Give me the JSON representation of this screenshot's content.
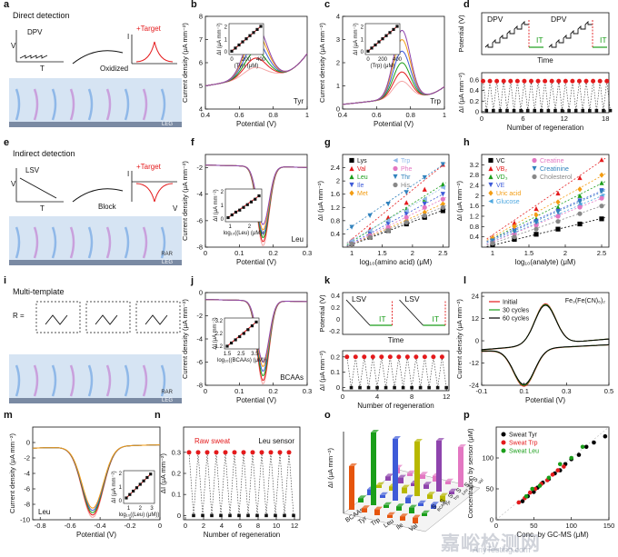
{
  "watermark": {
    "main": "嘉峪检测网",
    "url": "AnyTesting.com"
  },
  "schematics": {
    "a": {
      "title": "Direct detection",
      "method": "DPV",
      "target": "+Target",
      "step": "Oxidized",
      "axis_y": "V",
      "axis_x": "T",
      "axis_i": "I",
      "electrode": "LEG"
    },
    "e": {
      "title": "Indirect detection",
      "method": "LSV",
      "target": "+Target",
      "step": "Block",
      "axis_y": "V",
      "axis_x": "T",
      "axis_i": "I",
      "axis_v": "V",
      "electrode": "LEG",
      "layer": "RAR"
    },
    "i": {
      "title": "Multi-template",
      "r_label": "R =",
      "electrode": "LEG",
      "layer": "RAR"
    }
  },
  "chart_data": [
    {
      "panel": "b",
      "type": "line",
      "xlabel": "Potential (V)",
      "ylabel": "Current density (μA mm⁻²)",
      "xlim": [
        0.4,
        1.0
      ],
      "ylim": [
        4,
        8
      ],
      "xticks": [
        0.4,
        0.6,
        0.8,
        1.0
      ],
      "yticks": [
        4,
        5,
        6,
        7,
        8
      ],
      "annotation": "Tyr",
      "peak_x": 0.7,
      "series_peaks": [
        5.8,
        6.2,
        6.5,
        6.9,
        7.3,
        7.6
      ]
    },
    {
      "panel": "b-inset",
      "type": "scatter",
      "xlabel": "(Tyr) (μM)",
      "ylabel": "ΔI (μA mm⁻²)",
      "xticks": [
        0,
        200,
        400
      ],
      "yticks": [
        0,
        1,
        2
      ],
      "x": [
        0,
        50,
        100,
        150,
        200,
        250,
        300,
        350,
        400
      ],
      "y": [
        0.05,
        0.3,
        0.55,
        0.8,
        1.05,
        1.3,
        1.55,
        1.8,
        2.05
      ]
    },
    {
      "panel": "c",
      "type": "line",
      "xlabel": "Potential (V)",
      "ylabel": "Current density (μA mm⁻²)",
      "xlim": [
        0.4,
        1.0
      ],
      "ylim": [
        0,
        4
      ],
      "xticks": [
        0.4,
        0.6,
        0.8,
        1.0
      ],
      "yticks": [
        0,
        1,
        2,
        3,
        4
      ],
      "annotation": "Trp",
      "peak_x": 0.75,
      "series_peaks": [
        1.2,
        1.6,
        2.0,
        2.5,
        3.0,
        3.4
      ]
    },
    {
      "panel": "c-inset",
      "type": "scatter",
      "xlabel": "(Trp) (μM)",
      "ylabel": "ΔI (μA mm⁻²)",
      "xticks": [
        0,
        200,
        400
      ],
      "yticks": [
        0,
        1,
        2
      ],
      "x": [
        0,
        50,
        100,
        150,
        200,
        250,
        300,
        350,
        400
      ],
      "y": [
        0.05,
        0.3,
        0.55,
        0.8,
        1.05,
        1.3,
        1.55,
        1.8,
        2.05
      ]
    },
    {
      "panel": "d",
      "type": "line",
      "title_labels": [
        "DPV",
        "IT",
        "DPV",
        "IT"
      ],
      "xlabel": "Time",
      "ylabel": "Potential (V)"
    },
    {
      "panel": "d-2",
      "type": "scatter",
      "xlabel": "Number of regeneration",
      "ylabel": "ΔI (μA mm⁻²)",
      "xticks": [
        0,
        6,
        12,
        18
      ],
      "xlim": [
        0,
        18.5
      ],
      "ylim": [
        -0.02,
        0.74
      ],
      "yticks": [
        0,
        0.2,
        0.4,
        0.6
      ],
      "high": 0.58,
      "low": 0.02,
      "cycles": 19
    },
    {
      "panel": "f",
      "type": "line",
      "xlabel": "Potential (V)",
      "ylabel": "Current density (μA mm⁻²)",
      "xlim": [
        0,
        0.3
      ],
      "ylim": [
        -8,
        -1
      ],
      "xticks": [
        0,
        0.1,
        0.2,
        0.3
      ],
      "yticks": [
        -8,
        -6,
        -4,
        -2
      ],
      "annotation": "Leu",
      "peak_x": 0.17,
      "series_peaks": [
        -7.9,
        -7.6,
        -7.3,
        -7.0,
        -6.7,
        -6.3
      ]
    },
    {
      "panel": "f-inset",
      "type": "scatter",
      "xlabel": "log₁₀((Leu) (μM))",
      "ylabel": "ΔI (μA mm⁻²)",
      "xticks": [
        1,
        2
      ],
      "yticks": [
        0,
        1,
        2
      ],
      "x": [
        0.9,
        1.1,
        1.3,
        1.5,
        1.7,
        1.9,
        2.1,
        2.3,
        2.5
      ],
      "y": [
        0.1,
        0.3,
        0.5,
        0.65,
        0.85,
        1.05,
        1.25,
        1.45,
        1.7
      ]
    },
    {
      "panel": "g",
      "type": "scatter",
      "xlabel": "log₁₀(amino acid) (μM)",
      "ylabel": "ΔI (μA mm⁻²)",
      "xlim": [
        0.85,
        2.6
      ],
      "ylim": [
        0,
        2.8
      ],
      "xticks": [
        1.0,
        1.5,
        2.0,
        2.5
      ],
      "yticks": [
        0.4,
        0.8,
        1.2,
        1.6,
        2.0,
        2.4
      ],
      "x": [
        1.0,
        1.3,
        1.6,
        1.9,
        2.2,
        2.5
      ],
      "series": [
        {
          "name": "Lys",
          "color": "#000000",
          "marker": "square",
          "values": [
            0.1,
            0.3,
            0.5,
            0.7,
            0.9,
            1.1
          ]
        },
        {
          "name": "Val",
          "color": "#e41a1c",
          "marker": "triangle",
          "values": [
            0.2,
            0.55,
            0.9,
            1.35,
            1.75,
            2.5
          ]
        },
        {
          "name": "Leu",
          "color": "#1a9e1a",
          "marker": "triangle",
          "values": [
            0.15,
            0.45,
            0.8,
            1.15,
            1.45,
            1.9
          ]
        },
        {
          "name": "Ile",
          "color": "#3e5bd8",
          "marker": "triangle-down",
          "values": [
            0.12,
            0.4,
            0.7,
            1.0,
            1.3,
            1.6
          ]
        },
        {
          "name": "Met",
          "color": "#f39c12",
          "marker": "diamond",
          "values": [
            0.1,
            0.3,
            0.55,
            0.8,
            1.05,
            1.3
          ]
        },
        {
          "name": "Trp",
          "color": "#8fb8e8",
          "marker": "triangle-left",
          "values": [
            0.2,
            0.5,
            0.8,
            1.1,
            1.45,
            1.8
          ]
        },
        {
          "name": "Phe",
          "color": "#e377c2",
          "marker": "circle",
          "values": [
            0.1,
            0.35,
            0.6,
            0.9,
            1.2,
            1.45
          ]
        },
        {
          "name": "Thr",
          "color": "#3182bd",
          "marker": "triangle-down",
          "values": [
            0.6,
            0.95,
            1.3,
            1.65,
            2.1,
            2.5
          ]
        },
        {
          "name": "His",
          "color": "#888888",
          "marker": "circle",
          "values": [
            0.1,
            0.3,
            0.5,
            0.75,
            0.95,
            1.2
          ]
        }
      ]
    },
    {
      "panel": "h",
      "type": "scatter",
      "xlabel": "log₁₀(analyte) (μM)",
      "ylabel": "ΔI (μA mm⁻²)",
      "xlim": [
        0.85,
        2.6
      ],
      "ylim": [
        0,
        3.6
      ],
      "xticks": [
        1.0,
        1.5,
        2.0,
        2.5
      ],
      "yticks": [
        0.4,
        0.8,
        1.2,
        1.6,
        2.0,
        2.4,
        2.8,
        3.2
      ],
      "x": [
        1.0,
        1.3,
        1.6,
        1.9,
        2.2,
        2.5
      ],
      "series": [
        {
          "name": "VC",
          "color": "#000000",
          "marker": "square",
          "values": [
            0.1,
            0.3,
            0.5,
            0.7,
            0.9,
            1.1
          ]
        },
        {
          "name": "VB₂",
          "color": "#e41a1c",
          "marker": "triangle",
          "values": [
            0.4,
            0.95,
            1.5,
            2.1,
            2.7,
            3.4
          ]
        },
        {
          "name": "VD₃",
          "color": "#1a9e1a",
          "marker": "triangle",
          "values": [
            0.3,
            0.7,
            1.1,
            1.55,
            2.0,
            2.5
          ]
        },
        {
          "name": "VE",
          "color": "#3e5bd8",
          "marker": "triangle-down",
          "values": [
            0.3,
            0.65,
            1.0,
            1.4,
            1.8,
            2.2
          ]
        },
        {
          "name": "Uric acid",
          "color": "#f39c12",
          "marker": "diamond",
          "values": [
            0.35,
            0.8,
            1.25,
            1.75,
            2.25,
            2.8
          ]
        },
        {
          "name": "Glucose",
          "color": "#4fa8e0",
          "marker": "triangle-left",
          "values": [
            0.2,
            0.55,
            0.9,
            1.25,
            1.65,
            2.0
          ]
        },
        {
          "name": "Creatine",
          "color": "#e377c2",
          "marker": "circle",
          "values": [
            0.2,
            0.5,
            0.85,
            1.2,
            1.55,
            1.9
          ]
        },
        {
          "name": "Creatinine",
          "color": "#3182bd",
          "marker": "triangle-down",
          "values": [
            0.25,
            0.6,
            0.95,
            1.35,
            1.75,
            2.15
          ]
        },
        {
          "name": "Cholesterol",
          "color": "#888888",
          "marker": "circle",
          "values": [
            0.15,
            0.4,
            0.7,
            1.0,
            1.3,
            1.6
          ]
        }
      ]
    },
    {
      "panel": "j",
      "type": "line",
      "xlabel": "Potential (V)",
      "ylabel": "Current density (μA mm⁻²)",
      "xlim": [
        0,
        0.3
      ],
      "ylim": [
        -8,
        0
      ],
      "xticks": [
        0,
        0.1,
        0.2,
        0.3
      ],
      "yticks": [
        -8,
        -6,
        -4,
        -2,
        0
      ],
      "annotation": "BCAAs",
      "peak_x": 0.17,
      "series_peaks": [
        -7.9,
        -7.6,
        -7.2,
        -6.8,
        -6.4,
        -6.0
      ]
    },
    {
      "panel": "j-inset",
      "type": "scatter",
      "xlabel": "log₁₀((BCAAs) (μM))",
      "ylabel": "ΔI (μA mm⁻²)",
      "xticks": [
        1.5,
        2.5,
        3.5
      ],
      "yticks": [
        1.2,
        2.2,
        3.2
      ],
      "x": [
        1.5,
        1.8,
        2.1,
        2.4,
        2.7,
        3.0,
        3.3,
        3.6
      ],
      "y": [
        1.2,
        1.45,
        1.7,
        1.95,
        2.2,
        2.5,
        2.8,
        3.1
      ]
    },
    {
      "panel": "k",
      "type": "line",
      "title_labels": [
        "LSV",
        "IT",
        "LSV",
        "IT"
      ],
      "xlabel": "Time",
      "ylabel": "Potential (V)",
      "yticks": [
        0.4,
        0.2,
        0.0,
        -0.2
      ],
      "ylim": [
        -0.25,
        0.45
      ]
    },
    {
      "panel": "k-2",
      "type": "scatter",
      "xlabel": "Number of regeneration",
      "ylabel": "ΔI (μA mm⁻²)",
      "xticks": [
        0,
        4,
        8,
        12
      ],
      "xlim": [
        0,
        12.3
      ],
      "ylim": [
        -0.02,
        0.24
      ],
      "yticks": [
        0,
        0.1,
        0.2
      ],
      "high": 0.2,
      "low": 0.0,
      "cycles": 12
    },
    {
      "panel": "l",
      "type": "line",
      "xlabel": "Potential (V)",
      "ylabel": "Current density (μA mm⁻²)",
      "xlim": [
        -0.1,
        0.5
      ],
      "ylim": [
        -24,
        26
      ],
      "xticks": [
        -0.1,
        0.1,
        0.3,
        0.5
      ],
      "yticks": [
        -24,
        -12,
        0,
        12,
        24
      ],
      "annotation": "Fe₃(Fe(CN)₆)₂",
      "series": [
        {
          "name": "Initial",
          "color": "#e41a1c"
        },
        {
          "name": "30 cycles",
          "color": "#1a9e1a"
        },
        {
          "name": "60 cycles",
          "color": "#000000"
        }
      ]
    },
    {
      "panel": "m",
      "type": "line",
      "xlabel": "Potential (V)",
      "ylabel": "Current density (μA mm⁻²)",
      "xlim": [
        -0.85,
        0.0
      ],
      "ylim": [
        -10,
        2
      ],
      "xticks": [
        -0.8,
        -0.6,
        -0.4,
        -0.2,
        0.0
      ],
      "yticks": [
        -10,
        -8,
        -6,
        -4,
        -2,
        0
      ],
      "annotation": "Leu",
      "peak_x": -0.45,
      "series_peaks": [
        -9.7,
        -9.4,
        -9.1,
        -8.8,
        -8.5
      ]
    },
    {
      "panel": "m-inset",
      "type": "scatter",
      "xlabel": "log₁₀((Leu) (μM))",
      "ylabel": "ΔI (μA mm⁻²)",
      "xticks": [
        1,
        2,
        3
      ],
      "yticks": [
        0,
        1,
        2
      ],
      "x": [
        0.8,
        1.1,
        1.4,
        1.7,
        2.0,
        2.3,
        2.6,
        2.9
      ],
      "y": [
        0.2,
        0.45,
        0.7,
        0.95,
        1.2,
        1.45,
        1.7,
        1.95
      ]
    },
    {
      "panel": "n",
      "type": "scatter",
      "xlabel": "Number of regeneration",
      "ylabel": "ΔI (μA mm⁻²)",
      "xticks": [
        0,
        2,
        4,
        6,
        8,
        10,
        12
      ],
      "xlim": [
        -0.2,
        12.6
      ],
      "ylim": [
        -0.02,
        0.42
      ],
      "yticks": [
        0,
        0.1,
        0.2,
        0.3
      ],
      "high": 0.3,
      "low": 0.0,
      "cycles": 12,
      "label_red": "Raw sweat",
      "label_black": "Leu sensor"
    },
    {
      "panel": "o",
      "type": "bar",
      "xlabel": "",
      "ylabel": "ΔI (μA mm⁻²)",
      "categories": [
        "BCAAs",
        "Tyr",
        "Trp",
        "Leu",
        "Ile",
        "Val"
      ],
      "depth_labels": [
        "S",
        "S",
        "S",
        "S",
        "S",
        "S"
      ],
      "depth_subs": [
        "BCAAs",
        "Tyr",
        "Trp",
        "Leu",
        "Ile",
        "Val"
      ],
      "colors": [
        "#e6550d",
        "#1a9e1a",
        "#3e5bd8",
        "#b8b800",
        "#8e44ad",
        "#e377c2"
      ],
      "values": [
        0.6,
        1.0,
        0.85,
        0.75,
        0.7,
        0.55
      ]
    },
    {
      "panel": "p",
      "type": "scatter",
      "xlabel": "Conc. by GC-MS (μM)",
      "ylabel": "Concentration by sensor (μM)",
      "xlim": [
        0,
        150
      ],
      "ylim": [
        0,
        150
      ],
      "xticks": [
        0,
        50,
        100,
        150
      ],
      "yticks": [
        0,
        50,
        100
      ],
      "series": [
        {
          "name": "Sweat Tyr",
          "color": "#000000",
          "x": [
            35,
            42,
            50,
            55,
            62,
            70,
            78,
            85,
            92,
            100,
            110,
            120,
            130,
            145
          ],
          "y": [
            30,
            38,
            45,
            52,
            60,
            66,
            75,
            80,
            90,
            98,
            105,
            118,
            125,
            135
          ]
        },
        {
          "name": "Sweat Trp",
          "color": "#e41a1c",
          "x": [
            30,
            38,
            45,
            52,
            60,
            68,
            75,
            82,
            90
          ],
          "y": [
            28,
            35,
            44,
            50,
            58,
            64,
            73,
            80,
            86
          ]
        },
        {
          "name": "Sweat Leu",
          "color": "#1a9e1a",
          "x": [
            40,
            48,
            58,
            70,
            85,
            100,
            115
          ],
          "y": [
            38,
            50,
            55,
            68,
            90,
            100,
            118
          ]
        }
      ]
    }
  ],
  "panel_letters": [
    "a",
    "b",
    "c",
    "d",
    "e",
    "f",
    "g",
    "h",
    "i",
    "j",
    "k",
    "l",
    "m",
    "n",
    "o",
    "p"
  ]
}
